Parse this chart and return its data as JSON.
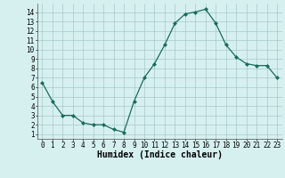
{
  "x": [
    0,
    1,
    2,
    3,
    4,
    5,
    6,
    7,
    8,
    9,
    10,
    11,
    12,
    13,
    14,
    15,
    16,
    17,
    18,
    19,
    20,
    21,
    22,
    23
  ],
  "y": [
    6.5,
    4.5,
    3.0,
    3.0,
    2.2,
    2.0,
    2.0,
    1.5,
    1.2,
    4.5,
    7.0,
    8.5,
    10.5,
    12.8,
    13.8,
    14.0,
    14.3,
    12.8,
    10.5,
    9.2,
    8.5,
    8.3,
    8.3,
    7.0
  ],
  "line_color": "#1a6b5a",
  "marker": "D",
  "marker_size": 2.0,
  "bg_color": "#d6f0f0",
  "grid_color": "#a8c8c8",
  "xlabel": "Humidex (Indice chaleur)",
  "xlim": [
    -0.5,
    23.5
  ],
  "ylim": [
    0.5,
    14.9
  ],
  "xticks": [
    0,
    1,
    2,
    3,
    4,
    5,
    6,
    7,
    8,
    9,
    10,
    11,
    12,
    13,
    14,
    15,
    16,
    17,
    18,
    19,
    20,
    21,
    22,
    23
  ],
  "yticks": [
    1,
    2,
    3,
    4,
    5,
    6,
    7,
    8,
    9,
    10,
    11,
    12,
    13,
    14
  ],
  "tick_label_fontsize": 5.5,
  "xlabel_fontsize": 7.0
}
